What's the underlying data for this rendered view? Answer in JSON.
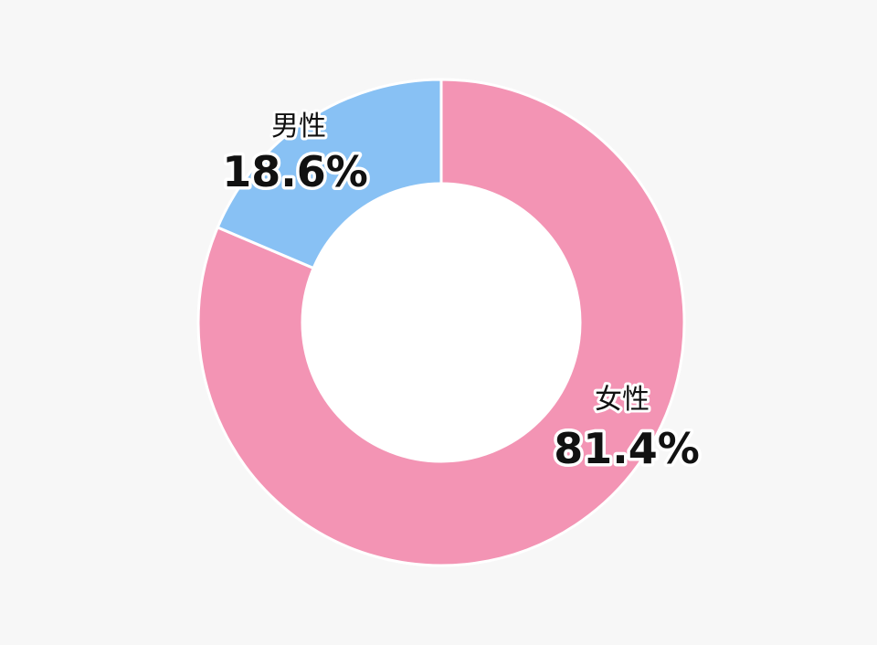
{
  "chart_data": {
    "type": "pie",
    "variant": "donut",
    "slices": [
      {
        "label": "女性",
        "value": 81.4,
        "value_label": "81.4%",
        "color": "#f394b4"
      },
      {
        "label": "男性",
        "value": 18.6,
        "value_label": "18.6%",
        "color": "#88c1f4"
      }
    ],
    "start_angle_deg": 0,
    "direction": "clockwise",
    "slice_border_color": "#ffffff",
    "hole_color": "#ffffff",
    "background_color": "#f7f7f7"
  }
}
